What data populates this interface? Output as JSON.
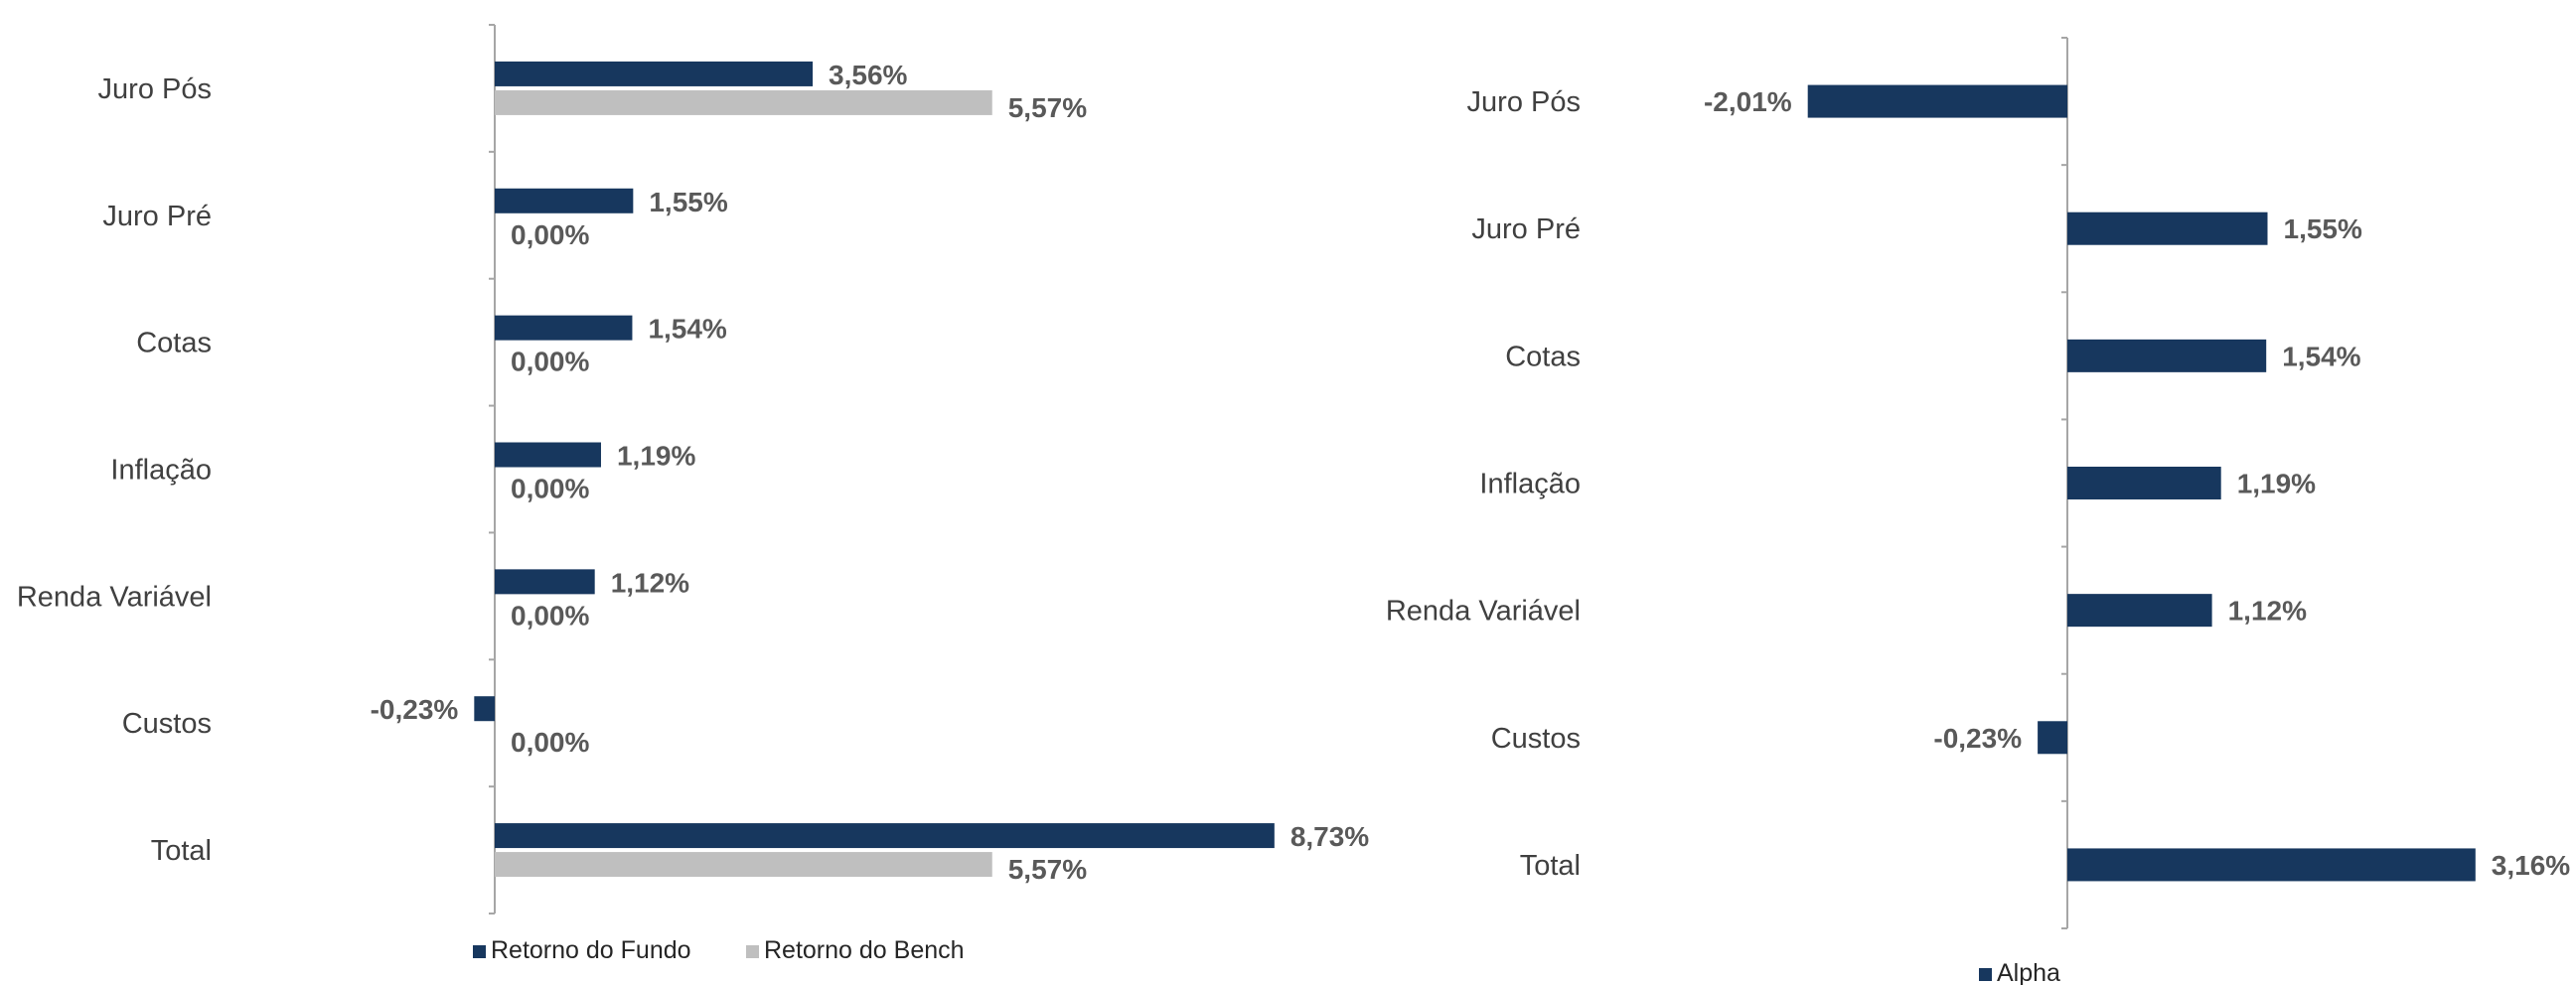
{
  "colors": {
    "fund": "#17375e",
    "bench": "#bfbfbf",
    "alpha": "#17375e",
    "axis": "#a6a6a6",
    "value_text": "#595959",
    "category_text": "#404040"
  },
  "chart_data": [
    {
      "type": "bar",
      "orientation": "horizontal",
      "categories": [
        "Juro Pós",
        "Juro Pré",
        "Cotas",
        "Inflação",
        "Renda Variável",
        "Custos",
        "Total"
      ],
      "series": [
        {
          "name": "Retorno do Fundo",
          "values": [
            3.56,
            1.55,
            1.54,
            1.19,
            1.12,
            -0.23,
            8.73
          ],
          "labels": [
            "3,56%",
            "1,55%",
            "1,54%",
            "1,19%",
            "1,12%",
            "-0,23%",
            "8,73%"
          ]
        },
        {
          "name": "Retorno do Bench",
          "values": [
            5.57,
            0.0,
            0.0,
            0.0,
            0.0,
            0.0,
            5.57
          ],
          "labels": [
            "5,57%",
            "0,00%",
            "0,00%",
            "0,00%",
            "0,00%",
            "0,00%",
            "5,57%"
          ]
        }
      ],
      "value_unit": "%",
      "legend_position": "bottom"
    },
    {
      "type": "bar",
      "orientation": "horizontal",
      "categories": [
        "Juro Pós",
        "Juro Pré",
        "Cotas",
        "Inflação",
        "Renda Variável",
        "Custos",
        "Total"
      ],
      "series": [
        {
          "name": "Alpha",
          "values": [
            -2.01,
            1.55,
            1.54,
            1.19,
            1.12,
            -0.23,
            3.16
          ],
          "labels": [
            "-2,01%",
            "1,55%",
            "1,54%",
            "1,19%",
            "1,12%",
            "-0,23%",
            "3,16%"
          ]
        }
      ],
      "value_unit": "%",
      "legend_position": "bottom"
    }
  ]
}
